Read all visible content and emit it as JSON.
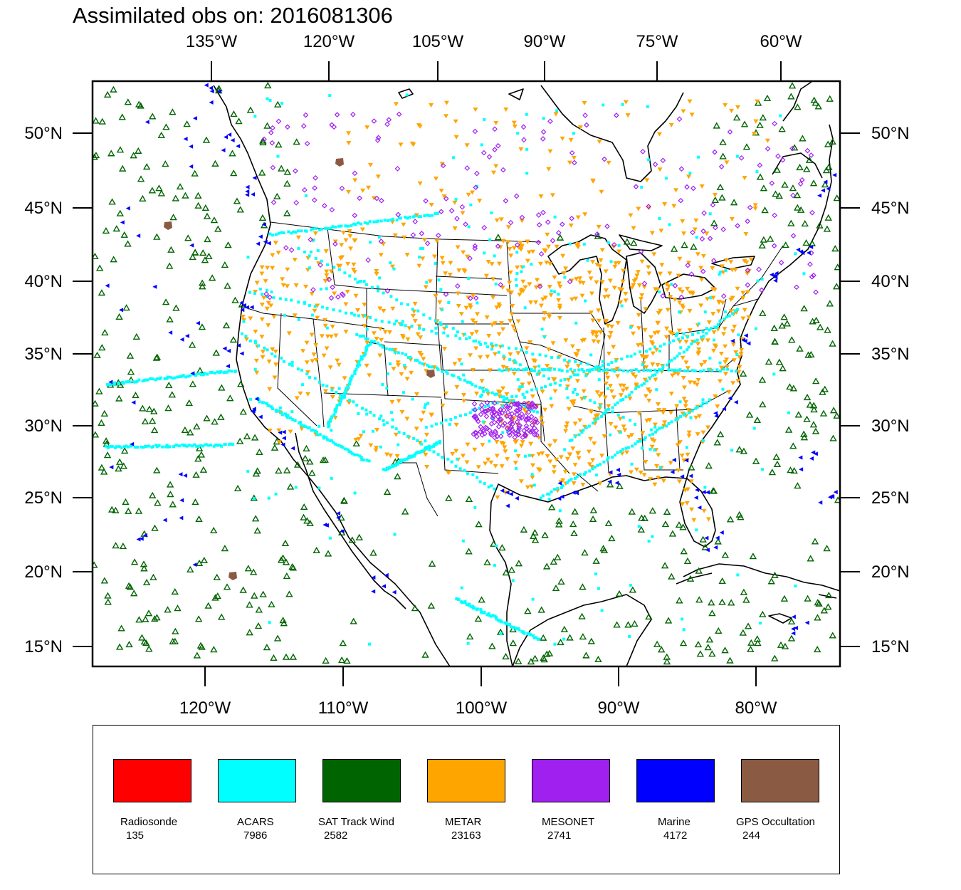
{
  "title": "Assimilated obs on: 2016081306",
  "top_lon_ticks": [
    "135°W",
    "120°W",
    "105°W",
    "90°W",
    "75°W",
    "60°W"
  ],
  "bottom_lon_ticks": [
    "120°W",
    "110°W",
    "100°W",
    "90°W",
    "80°W"
  ],
  "lat_ticks": [
    "50°N",
    "45°N",
    "40°N",
    "35°N",
    "30°N",
    "25°N",
    "20°N",
    "15°N"
  ],
  "legend": [
    {
      "name": "Radiosonde",
      "count": "135",
      "color": "#ff0000"
    },
    {
      "name": "ACARS",
      "count": "7986",
      "color": "#00ffff"
    },
    {
      "name": "SAT Track Wind",
      "count": "2582",
      "color": "#006400"
    },
    {
      "name": "METAR",
      "count": "23163",
      "color": "#ffa500"
    },
    {
      "name": "MESONET",
      "count": "2741",
      "color": "#a020f0"
    },
    {
      "name": "Marine",
      "count": "4172",
      "color": "#0000ff"
    },
    {
      "name": "GPS Occultation",
      "count": "244",
      "color": "#8b5a43"
    }
  ]
}
